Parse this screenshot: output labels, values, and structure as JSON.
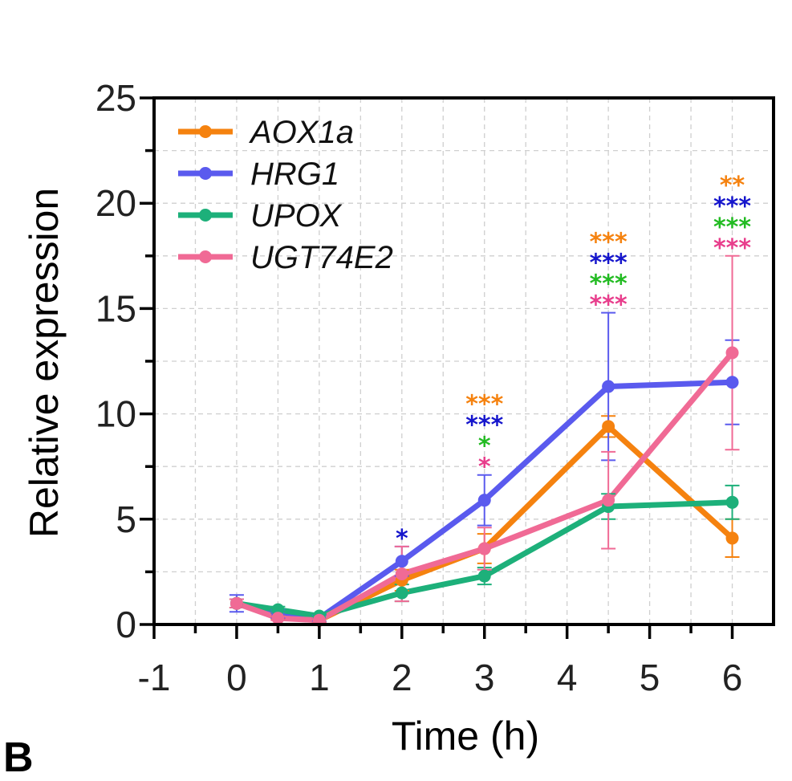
{
  "chart_data": {
    "type": "line",
    "title": "",
    "xlabel": "Time (h)",
    "ylabel": "Relative expression",
    "xlim": [
      -1,
      6.5
    ],
    "ylim": [
      0,
      25
    ],
    "xticks": [
      -1,
      0,
      1,
      2,
      3,
      4,
      5,
      6
    ],
    "yticks": [
      0,
      5,
      10,
      15,
      20,
      25
    ],
    "grid": true,
    "legend_position": "top-left",
    "series": [
      {
        "name": "AOX1a",
        "color": "#F5820F",
        "x": [
          0,
          0.5,
          1,
          2,
          3,
          4.5,
          6
        ],
        "y": [
          1.0,
          0.4,
          0.2,
          2.1,
          3.6,
          9.4,
          4.1
        ],
        "err": [
          0.2,
          0.15,
          0.1,
          0.5,
          0.7,
          0.5,
          0.9
        ]
      },
      {
        "name": "HRG1",
        "color": "#5A5AEE",
        "x": [
          0,
          0.5,
          1,
          2,
          3,
          4.5,
          6
        ],
        "y": [
          1.0,
          0.5,
          0.3,
          3.0,
          5.9,
          11.3,
          11.5
        ],
        "err": [
          0.4,
          0.2,
          0.15,
          0.7,
          1.2,
          3.5,
          2.0
        ]
      },
      {
        "name": "UPOX",
        "color": "#1DB07A",
        "x": [
          0,
          0.5,
          1,
          2,
          3,
          4.5,
          6
        ],
        "y": [
          1.0,
          0.7,
          0.4,
          1.5,
          2.3,
          5.6,
          5.8
        ],
        "err": [
          0.2,
          0.15,
          0.1,
          0.4,
          0.4,
          0.6,
          0.8
        ]
      },
      {
        "name": "UGT74E2",
        "color": "#F06A95",
        "x": [
          0,
          0.5,
          1,
          2,
          3,
          4.5,
          6
        ],
        "y": [
          1.0,
          0.3,
          0.2,
          2.4,
          3.6,
          5.9,
          12.9
        ],
        "err": [
          0.2,
          0.1,
          0.1,
          1.3,
          1.0,
          2.3,
          4.6
        ]
      }
    ],
    "annotations": [
      {
        "x": 2,
        "stars": [
          {
            "text": "*",
            "color": "#1515CC"
          }
        ]
      },
      {
        "x": 3,
        "stars": [
          {
            "text": "***",
            "color": "#F5820F"
          },
          {
            "text": "***",
            "color": "#1515CC"
          },
          {
            "text": "*",
            "color": "#22BB22"
          },
          {
            "text": "*",
            "color": "#E83E8C"
          }
        ]
      },
      {
        "x": 4.5,
        "stars": [
          {
            "text": "***",
            "color": "#F5820F"
          },
          {
            "text": "***",
            "color": "#1515CC"
          },
          {
            "text": "***",
            "color": "#22BB22"
          },
          {
            "text": "***",
            "color": "#E83E8C"
          }
        ]
      },
      {
        "x": 6,
        "stars": [
          {
            "text": "**",
            "color": "#F5820F"
          },
          {
            "text": "***",
            "color": "#1515CC"
          },
          {
            "text": "***",
            "color": "#22BB22"
          },
          {
            "text": "***",
            "color": "#E83E8C"
          }
        ]
      }
    ]
  },
  "panel_label": "B"
}
